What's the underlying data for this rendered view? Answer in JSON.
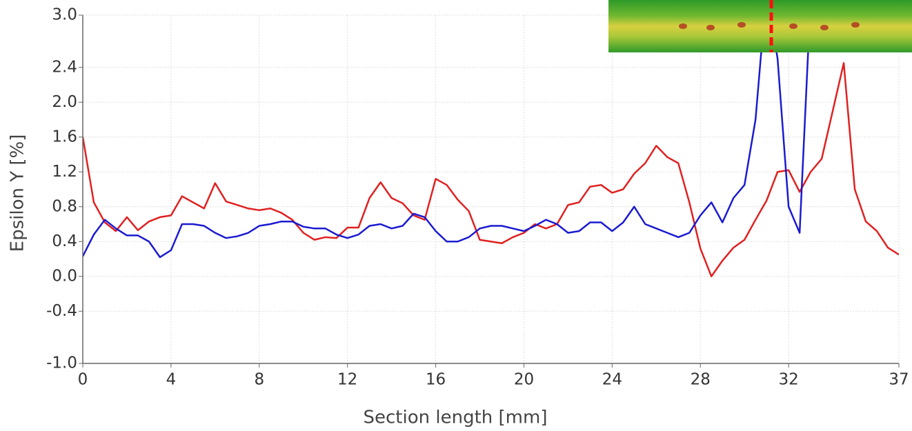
{
  "chart_data": {
    "type": "line",
    "x_label": "Section length [mm]",
    "y_label": "Epsilon Y [%]",
    "x": [
      0,
      0.5,
      1,
      1.5,
      2,
      2.5,
      3,
      3.5,
      4,
      4.5,
      5,
      5.5,
      6,
      6.5,
      7,
      7.5,
      8,
      8.5,
      9,
      9.5,
      10,
      10.5,
      11,
      11.5,
      12,
      12.5,
      13,
      13.5,
      14,
      14.5,
      15,
      15.5,
      16,
      16.5,
      17,
      17.5,
      18,
      18.5,
      19,
      19.5,
      20,
      20.5,
      21,
      21.5,
      22,
      22.5,
      23,
      23.5,
      24,
      24.5,
      25,
      25.5,
      26,
      26.5,
      27,
      27.5,
      28,
      28.5,
      29,
      29.5,
      30,
      30.5,
      31,
      31.5,
      32,
      32.5,
      33,
      33.5,
      34,
      34.5,
      35,
      35.5,
      36,
      36.5,
      37
    ],
    "series": [
      {
        "color": "#e02020",
        "values": [
          1.6,
          0.85,
          0.62,
          0.52,
          0.68,
          0.53,
          0.63,
          0.68,
          0.7,
          0.92,
          0.85,
          0.78,
          1.07,
          0.86,
          0.82,
          0.78,
          0.76,
          0.78,
          0.73,
          0.65,
          0.5,
          0.42,
          0.45,
          0.44,
          0.56,
          0.56,
          0.9,
          1.08,
          0.9,
          0.84,
          0.7,
          0.65,
          1.12,
          1.05,
          0.88,
          0.75,
          0.42,
          0.4,
          0.38,
          0.45,
          0.5,
          0.6,
          0.55,
          0.6,
          0.82,
          0.85,
          1.03,
          1.05,
          0.96,
          1.0,
          1.18,
          1.3,
          1.5,
          1.37,
          1.3,
          0.85,
          0.32,
          0.0,
          0.18,
          0.33,
          0.42,
          0.65,
          0.87,
          1.2,
          1.22,
          0.97,
          1.2,
          1.35,
          1.9,
          2.45,
          1.0,
          0.63,
          0.52,
          0.33,
          0.25
        ]
      },
      {
        "color": "#1a1ad0",
        "values": [
          0.23,
          0.48,
          0.65,
          0.55,
          0.47,
          0.47,
          0.4,
          0.22,
          0.3,
          0.6,
          0.6,
          0.58,
          0.5,
          0.44,
          0.46,
          0.5,
          0.58,
          0.6,
          0.63,
          0.63,
          0.57,
          0.55,
          0.55,
          0.48,
          0.44,
          0.48,
          0.58,
          0.6,
          0.55,
          0.58,
          0.72,
          0.68,
          0.52,
          0.4,
          0.4,
          0.45,
          0.55,
          0.58,
          0.58,
          0.55,
          0.52,
          0.58,
          0.65,
          0.6,
          0.5,
          0.52,
          0.62,
          0.62,
          0.52,
          0.62,
          0.8,
          0.6,
          0.55,
          0.5,
          0.45,
          0.5,
          0.7,
          0.85,
          0.62,
          0.9,
          1.05,
          1.8,
          3.3,
          2.5,
          0.8,
          0.5,
          3.2,
          null,
          null,
          null,
          null,
          null,
          null,
          null,
          null
        ]
      }
    ],
    "xlim": [
      0,
      37
    ],
    "xticks": [
      0,
      4,
      8,
      12,
      16,
      20,
      24,
      28,
      32,
      37
    ],
    "ylim": [
      -1,
      3
    ],
    "yticks": [
      {
        "value": -1,
        "label": "-1.0"
      },
      -0.4,
      {
        "value": 0,
        "label": "0.0"
      },
      0.4,
      0.8,
      1.2,
      1.6,
      {
        "value": 2,
        "label": "2.0"
      },
      2.4,
      {
        "value": 3,
        "label": "3.0"
      }
    ],
    "grid": true
  }
}
